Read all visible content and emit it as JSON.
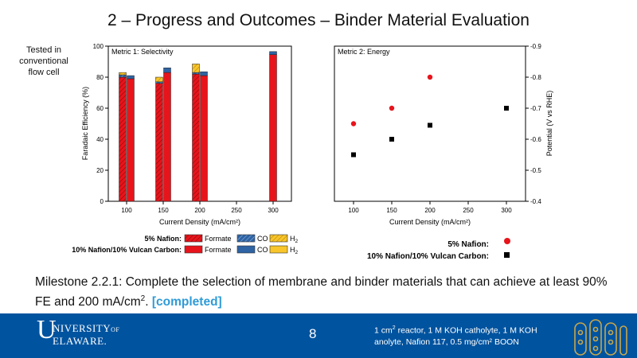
{
  "slide": {
    "title": "2 – Progress and Outcomes – Binder Material Evaluation",
    "side_note": "Tested in conventional flow cell",
    "milestone_pre": "Milestone 2.2.1: Complete the selection of membrane and binder materials that can achieve at least 90% FE and 200 mA/cm",
    "milestone_sup": "2",
    "milestone_post": ". ",
    "milestone_status": "[completed]",
    "page_number": "8",
    "footer_note_pre": "1 cm",
    "footer_note_sup": "2",
    "footer_note_post": " reactor, 1 M KOH catholyte, 1 M KOH anolyte, Nafion 117, 0.5 mg/cm² BOON",
    "logo_u": "U",
    "logo_line1_a": "NIVERSITY",
    "logo_line1_of": "OF",
    "logo_line2": "ELAWARE."
  },
  "colors": {
    "formate": "#e8141b",
    "co": "#2e63a4",
    "h2": "#f8c52a",
    "footer": "#00539f",
    "completed": "#2f9bd7"
  },
  "chart_data": [
    {
      "type": "bar",
      "panel_label": "Metric 1: Selectivity",
      "xlabel": "Current Density (mA/cm²)",
      "ylabel": "Faradaic Efficiency (%)",
      "x_ticks": [
        "100",
        "150",
        "200",
        "250",
        "300"
      ],
      "y_ticks": [
        "0",
        "20",
        "40",
        "60",
        "80",
        "100"
      ],
      "xlim": [
        75,
        325
      ],
      "ylim": [
        0,
        100
      ],
      "groups": [
        {
          "x": 100,
          "bars": [
            {
              "catalyst": "5% Nafion",
              "formate": 80,
              "co": 1.5,
              "h2": 1.5
            },
            {
              "catalyst": "10% Nafion/10% Vulcan Carbon",
              "formate": 79,
              "co": 2,
              "h2": 0
            }
          ]
        },
        {
          "x": 150,
          "bars": [
            {
              "catalyst": "5% Nafion",
              "formate": 76,
              "co": 1,
              "h2": 3
            },
            {
              "catalyst": "10% Nafion/10% Vulcan Carbon",
              "formate": 83,
              "co": 3,
              "h2": 0
            }
          ]
        },
        {
          "x": 200,
          "bars": [
            {
              "catalyst": "5% Nafion",
              "formate": 82,
              "co": 1,
              "h2": 5.5
            },
            {
              "catalyst": "10% Nafion/10% Vulcan Carbon",
              "formate": 81,
              "co": 2.5,
              "h2": 0
            }
          ]
        },
        {
          "x": 300,
          "bars": [
            {
              "catalyst": "10% Nafion/10% Vulcan Carbon",
              "formate": 94.5,
              "co": 2,
              "h2": 0
            }
          ]
        }
      ],
      "legend": {
        "rows": [
          "5% Nafion:",
          "10% Nafion/10% Vulcan Carbon:"
        ],
        "labels": [
          "Formate",
          "CO",
          "H2"
        ]
      }
    },
    {
      "type": "scatter",
      "panel_label": "Metric 2: Energy",
      "xlabel": "Current Density (mA/cm²)",
      "ylabel": "Potential (V vs RHE)",
      "x_ticks": [
        "100",
        "150",
        "200",
        "250",
        "300"
      ],
      "y_ticks": [
        "-0.4",
        "-0.5",
        "-0.6",
        "-0.7",
        "-0.8",
        "-0.9"
      ],
      "xlim": [
        75,
        325
      ],
      "ylim": [
        -0.4,
        -0.9
      ],
      "series": [
        {
          "name": "5% Nafion:",
          "marker": "circle",
          "color": "#e8141b",
          "x": [
            100,
            150,
            200
          ],
          "y": [
            -0.65,
            -0.7,
            -0.8
          ]
        },
        {
          "name": "10% Nafion/10% Vulcan Carbon:",
          "marker": "square",
          "color": "#000000",
          "x": [
            100,
            150,
            200,
            300
          ],
          "y": [
            -0.55,
            -0.6,
            -0.645,
            -0.7
          ]
        }
      ]
    }
  ]
}
